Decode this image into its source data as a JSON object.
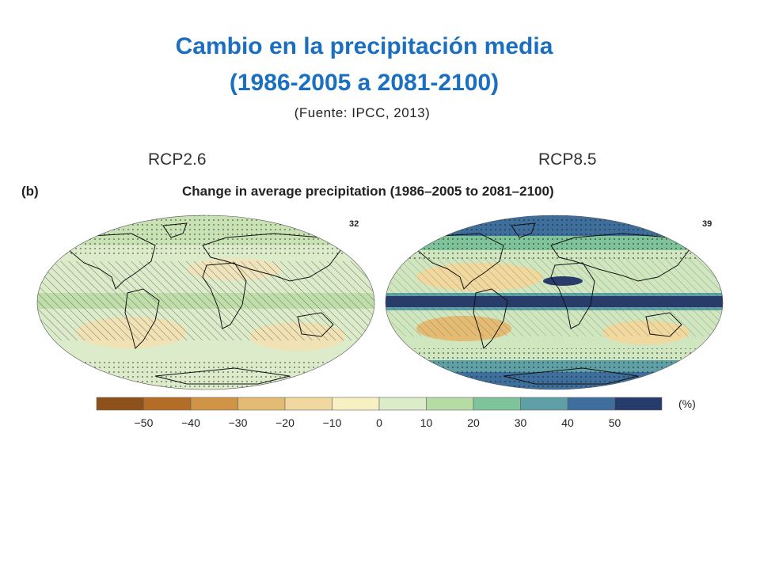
{
  "slide": {
    "title_line1": "Cambio en la precipitación media",
    "title_line2": "(1986-2005 a 2081-2100)",
    "source": "(Fuente: IPCC, 2013)"
  },
  "figure": {
    "panel_letter": "(b)",
    "title": "Change in average precipitation (1986–2005 to 2081–2100)",
    "maps": [
      {
        "scenario": "RCP2.6",
        "model_count": "32"
      },
      {
        "scenario": "RCP8.5",
        "model_count": "39"
      }
    ]
  },
  "legend": {
    "unit": "(%)",
    "ticks": [
      "−50",
      "−40",
      "−30",
      "−20",
      "−10",
      "0",
      "10",
      "20",
      "30",
      "40",
      "50"
    ],
    "colors": [
      "#8c5219",
      "#b36d27",
      "#cf9446",
      "#e3bb73",
      "#f0d89e",
      "#f7f0c3",
      "#dcebc9",
      "#b7dba5",
      "#7ec39a",
      "#5ea0a5",
      "#3e6f9c",
      "#283c6b"
    ]
  }
}
